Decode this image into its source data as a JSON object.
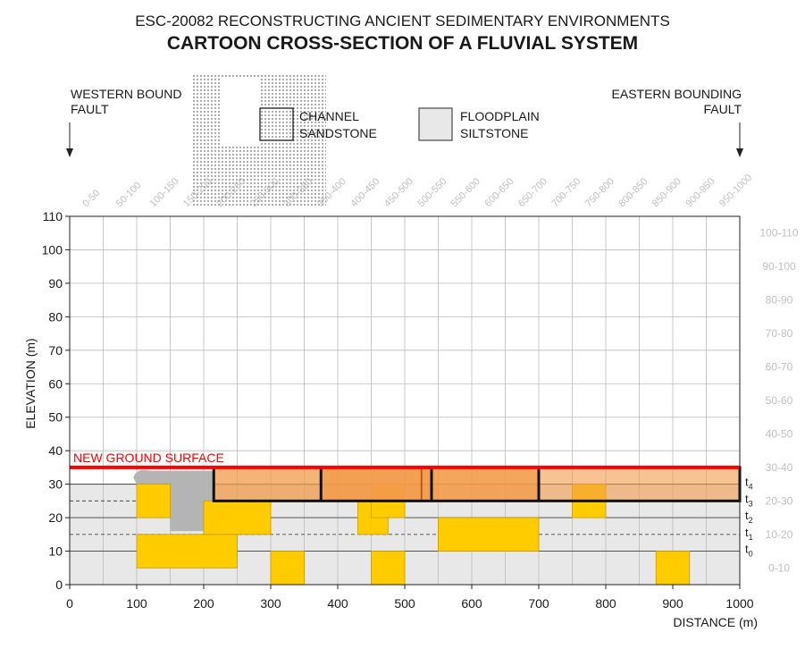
{
  "header": {
    "subtitle": "ESC-20082 RECONSTRUCTING ANCIENT SEDIMENTARY ENVIRONMENTS",
    "title": "CARTOON CROSS-SECTION OF A FLUVIAL SYSTEM"
  },
  "faults": {
    "west_line1": "WESTERN BOUND",
    "west_line2": "FAULT",
    "east_line1": "EASTERN BOUNDING",
    "east_line2": "FAULT"
  },
  "legend": {
    "channel_line1": "CHANNEL",
    "channel_line2": "SANDSTONE",
    "floodplain_line1": "FLOODPLAIN",
    "floodplain_line2": "SILTSTONE"
  },
  "axes": {
    "x_label": "DISTANCE (m)",
    "y_label": "ELEVATION (m)",
    "x_ticks": [
      "0",
      "100",
      "200",
      "300",
      "400",
      "500",
      "600",
      "700",
      "800",
      "900",
      "1000"
    ],
    "y_ticks": [
      "0",
      "10",
      "20",
      "30",
      "40",
      "50",
      "60",
      "70",
      "80",
      "90",
      "100",
      "110"
    ],
    "x_range": [
      0,
      1000
    ],
    "y_range": [
      0,
      110
    ],
    "grid": true
  },
  "column_labels": [
    "0-50",
    "50-100",
    "100-150",
    "150-200",
    "200-250",
    "250-300",
    "300-350",
    "350-400",
    "400-450",
    "450-500",
    "500-550",
    "550-600",
    "600-650",
    "650-700",
    "700-750",
    "750-800",
    "800-850",
    "850-900",
    "900-950",
    "950-1000"
  ],
  "row_labels": [
    "0-10",
    "10-20",
    "20-30",
    "30-40",
    "40-50",
    "50-60",
    "60-70",
    "70-80",
    "80-90",
    "90-100",
    "100-110"
  ],
  "ground_surface": {
    "label": "NEW GROUND SURFACE",
    "elevation": 35,
    "x_start": 0,
    "x_end": 1000,
    "color": "#ff0000"
  },
  "time_lines": [
    {
      "label": "t",
      "sub": "0",
      "elevation": 10,
      "style": "solid"
    },
    {
      "label": "t",
      "sub": "1",
      "elevation": 15,
      "style": "dashed"
    },
    {
      "label": "t",
      "sub": "2",
      "elevation": 20,
      "style": "solid"
    },
    {
      "label": "t",
      "sub": "3",
      "elevation": 25,
      "style": "dashed"
    },
    {
      "label": "t",
      "sub": "4",
      "elevation": 30,
      "style": "solid"
    }
  ],
  "floodplain_fill": {
    "elevation_top": 30,
    "color": "#e8e8e8"
  },
  "channel_sandstone_bodies": [
    {
      "x0": 100,
      "x1": 150,
      "y0": 20,
      "y1": 30
    },
    {
      "x0": 100,
      "x1": 250,
      "y0": 5,
      "y1": 15
    },
    {
      "x0": 200,
      "x1": 300,
      "y0": 15,
      "y1": 25
    },
    {
      "x0": 300,
      "x1": 350,
      "y0": 0,
      "y1": 10
    },
    {
      "x0": 430,
      "x1": 475,
      "y0": 15,
      "y1": 25
    },
    {
      "x0": 450,
      "x1": 500,
      "y0": 20,
      "y1": 30
    },
    {
      "x0": 450,
      "x1": 500,
      "y0": 0,
      "y1": 10
    },
    {
      "x0": 550,
      "x1": 700,
      "y0": 10,
      "y1": 20
    },
    {
      "x0": 750,
      "x1": 800,
      "y0": 20,
      "y1": 30
    },
    {
      "x0": 875,
      "x1": 925,
      "y0": 0,
      "y1": 10
    }
  ],
  "active_channel_belt": {
    "x0": 215,
    "x1": 1000,
    "y0": 25,
    "y1": 35,
    "dividers": [
      375,
      540,
      700
    ],
    "inner_dividers": [
      525
    ],
    "color": "#f29b4a"
  },
  "gray_incision": {
    "color": "#b4b4b4"
  },
  "colors": {
    "sandstone": "#ffcc00",
    "sandstone_edge": "#c99a00",
    "grid": "#bbbbbb",
    "column_label": "#c0c0c0"
  }
}
